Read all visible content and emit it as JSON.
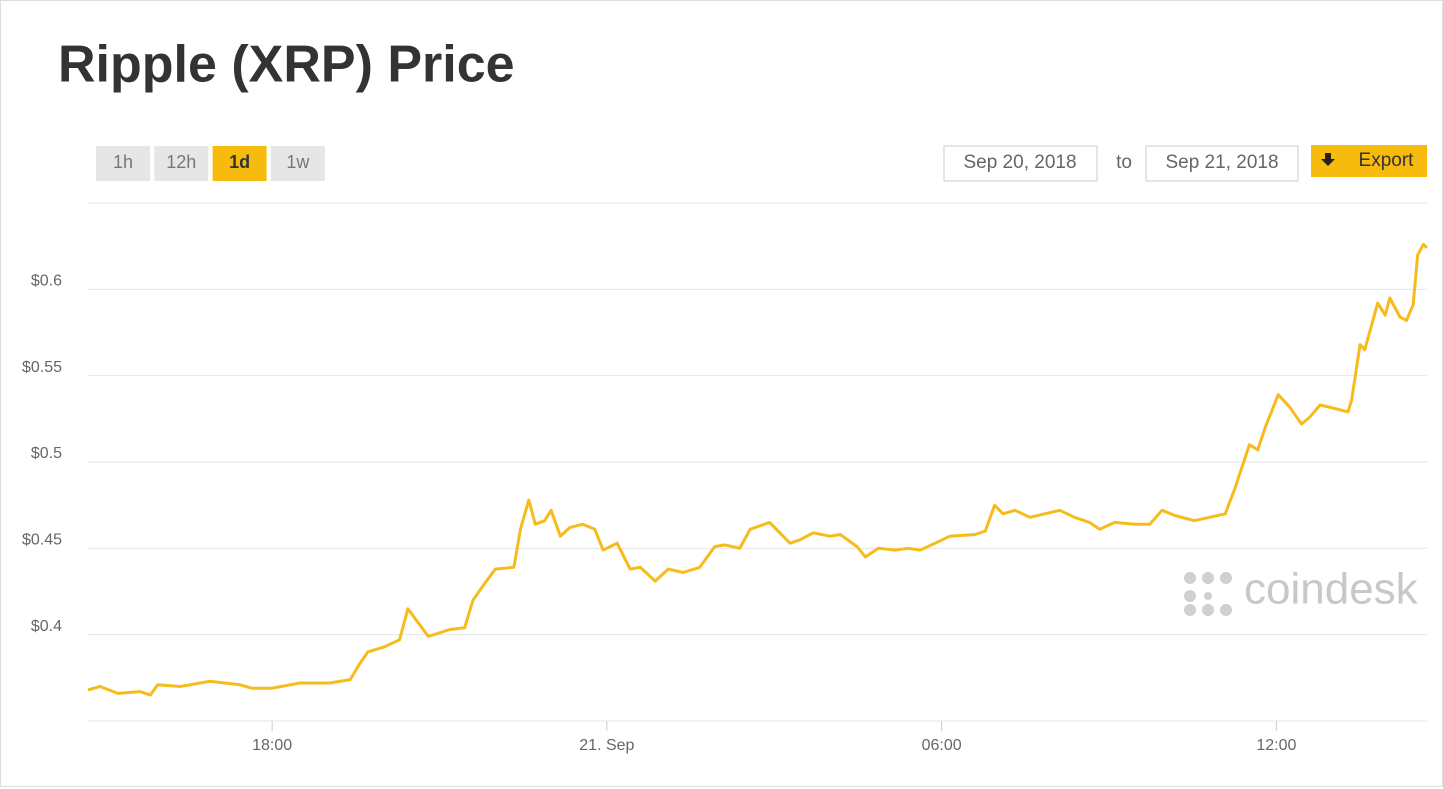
{
  "chart_data": {
    "type": "line",
    "title": "Ripple (XRP) Price",
    "x": [
      "Sep 20 14:42",
      "Sep 20 14:55",
      "Sep 20 15:14",
      "Sep 20 15:38",
      "Sep 20 15:49",
      "Sep 20 15:57",
      "Sep 20 16:21",
      "Sep 20 16:53",
      "Sep 20 17:25",
      "Sep 20 17:38",
      "Sep 20 18:00",
      "Sep 20 18:30",
      "Sep 20 19:02",
      "Sep 20 19:24",
      "Sep 20 19:34",
      "Sep 20 19:43",
      "Sep 20 20:01",
      "Sep 20 20:17",
      "Sep 20 20:26",
      "Sep 20 20:48",
      "Sep 20 21:11",
      "Sep 20 21:27",
      "Sep 20 21:36",
      "Sep 20 21:49",
      "Sep 20 22:00",
      "Sep 20 22:20",
      "Sep 20 22:27",
      "Sep 20 22:36",
      "Sep 20 22:43",
      "Sep 20 22:53",
      "Sep 20 23:00",
      "Sep 20 23:10",
      "Sep 20 23:20",
      "Sep 20 23:34",
      "Sep 20 23:47",
      "Sep 20 23:56",
      "Sep 21 00:11",
      "Sep 21 00:25",
      "Sep 21 00:36",
      "Sep 21 00:52",
      "Sep 21 01:06",
      "Sep 21 01:22",
      "Sep 21 01:40",
      "Sep 21 01:56",
      "Sep 21 02:07",
      "Sep 21 02:23",
      "Sep 21 02:34",
      "Sep 21 02:55",
      "Sep 21 03:17",
      "Sep 21 03:28",
      "Sep 21 03:42",
      "Sep 21 04:00",
      "Sep 21 04:11",
      "Sep 21 04:29",
      "Sep 21 04:38",
      "Sep 21 04:52",
      "Sep 21 05:10",
      "Sep 21 05:24",
      "Sep 21 05:37",
      "Sep 21 05:53",
      "Sep 21 06:09",
      "Sep 21 06:36",
      "Sep 21 06:47",
      "Sep 21 06:57",
      "Sep 21 07:06",
      "Sep 21 07:19",
      "Sep 21 07:35",
      "Sep 21 07:51",
      "Sep 21 08:07",
      "Sep 21 08:23",
      "Sep 21 08:39",
      "Sep 21 08:50",
      "Sep 21 09:06",
      "Sep 21 09:28",
      "Sep 21 09:44",
      "Sep 21 09:57",
      "Sep 21 10:11",
      "Sep 21 10:32",
      "Sep 21 10:48",
      "Sep 21 11:05",
      "Sep 21 11:15",
      "Sep 21 11:31",
      "Sep 21 11:40",
      "Sep 21 11:48",
      "Sep 21 12:02",
      "Sep 21 12:14",
      "Sep 21 12:27",
      "Sep 21 12:36",
      "Sep 21 12:47",
      "Sep 21 13:03",
      "Sep 21 13:17",
      "Sep 21 13:21",
      "Sep 21 13:30",
      "Sep 21 13:35",
      "Sep 21 13:49",
      "Sep 21 13:57",
      "Sep 21 14:02",
      "Sep 21 14:13",
      "Sep 21 14:20",
      "Sep 21 14:27",
      "Sep 21 14:32",
      "Sep 21 14:38",
      "Sep 21 14:42"
    ],
    "series": [
      {
        "name": "XRP",
        "color": "#f5bc1c",
        "values": [
          0.368,
          0.37,
          0.366,
          0.367,
          0.365,
          0.371,
          0.37,
          0.373,
          0.371,
          0.369,
          0.369,
          0.372,
          0.372,
          0.374,
          0.383,
          0.39,
          0.393,
          0.397,
          0.415,
          0.399,
          0.403,
          0.404,
          0.42,
          0.43,
          0.438,
          0.439,
          0.461,
          0.478,
          0.464,
          0.466,
          0.472,
          0.457,
          0.462,
          0.464,
          0.461,
          0.449,
          0.453,
          0.438,
          0.439,
          0.431,
          0.438,
          0.436,
          0.439,
          0.451,
          0.452,
          0.45,
          0.461,
          0.465,
          0.453,
          0.455,
          0.459,
          0.457,
          0.458,
          0.451,
          0.445,
          0.45,
          0.449,
          0.45,
          0.449,
          0.453,
          0.457,
          0.458,
          0.46,
          0.475,
          0.47,
          0.472,
          0.468,
          0.47,
          0.472,
          0.468,
          0.465,
          0.461,
          0.465,
          0.464,
          0.464,
          0.472,
          0.469,
          0.466,
          0.468,
          0.47,
          0.484,
          0.51,
          0.507,
          0.52,
          0.539,
          0.532,
          0.522,
          0.526,
          0.533,
          0.531,
          0.529,
          0.536,
          0.568,
          0.565,
          0.592,
          0.585,
          0.595,
          0.584,
          0.582,
          0.591,
          0.62,
          0.626,
          0.624
        ]
      }
    ],
    "xlim": [
      "Sep 20 14:42",
      "Sep 21 14:42"
    ],
    "xticks": [
      {
        "value": "Sep 20 18:00",
        "label": "18:00"
      },
      {
        "value": "Sep 21 00:00",
        "label": "21. Sep"
      },
      {
        "value": "Sep 21 06:00",
        "label": "06:00"
      },
      {
        "value": "Sep 21 12:00",
        "label": "12:00"
      }
    ],
    "ylim": [
      0.35,
      0.65
    ],
    "yticks": [
      {
        "value": 0.4,
        "label": "$0.4"
      },
      {
        "value": 0.45,
        "label": "$0.45"
      },
      {
        "value": 0.5,
        "label": "$0.5"
      },
      {
        "value": 0.55,
        "label": "$0.55"
      },
      {
        "value": 0.6,
        "label": "$0.6"
      }
    ],
    "grid": true
  },
  "controls": {
    "ranges": [
      "1h",
      "12h",
      "1d",
      "1w"
    ],
    "active": "1d",
    "from": "Sep 20, 2018",
    "to_word": "to",
    "to": "Sep 21, 2018",
    "export": "Export"
  },
  "logo": "coindesk"
}
